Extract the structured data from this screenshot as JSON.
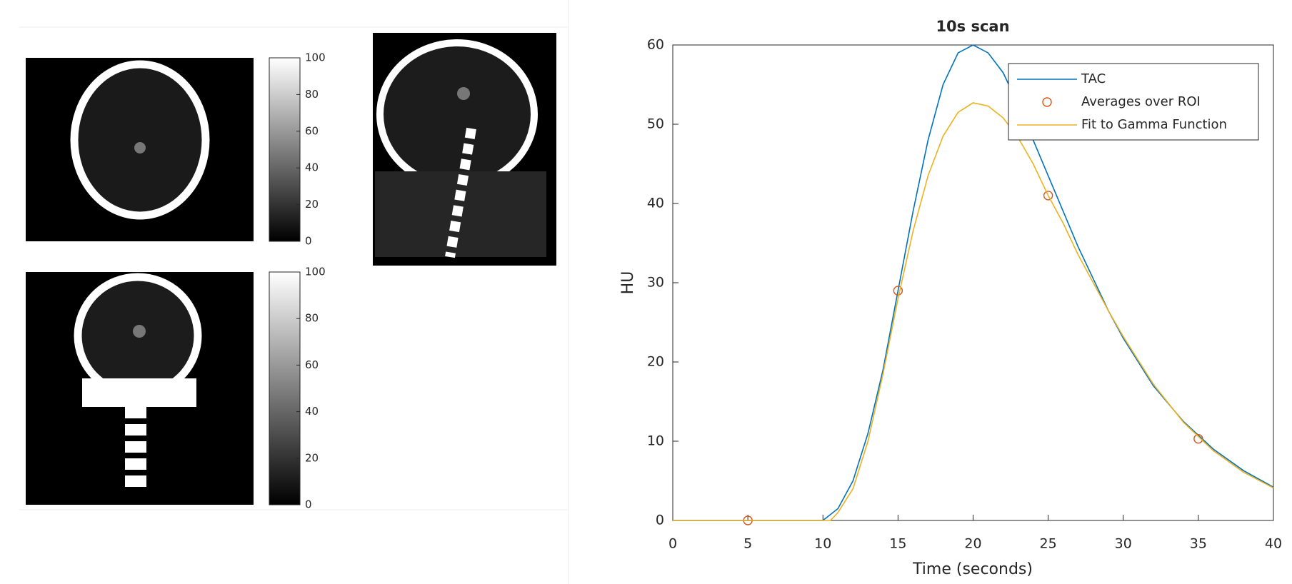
{
  "colorbars": [
    {
      "lim": [
        0,
        100
      ],
      "ticks": [
        0,
        20,
        40,
        60,
        80,
        100
      ]
    },
    {
      "lim": [
        0,
        100
      ],
      "ticks": [
        0,
        20,
        40,
        60,
        80,
        100
      ]
    }
  ],
  "chart_data": {
    "type": "line",
    "title": "10s scan",
    "x_label": "Time (seconds)",
    "y_label": "HU",
    "xlim": [
      0,
      40
    ],
    "xticks": [
      0,
      5,
      10,
      15,
      20,
      25,
      30,
      35,
      40
    ],
    "ylim": [
      0,
      60
    ],
    "yticks": [
      0,
      10,
      20,
      30,
      40,
      50,
      60
    ],
    "legend": "northeast",
    "series": [
      {
        "name": "TAC",
        "color": "#0072bd",
        "style": "line",
        "x": [
          0,
          10,
          11,
          12,
          13,
          14,
          15,
          16,
          17,
          18,
          19,
          20,
          21,
          22,
          23,
          24,
          25,
          26,
          27,
          28,
          29,
          30,
          32,
          34,
          36,
          38,
          40
        ],
        "values": [
          0,
          0,
          1.5,
          5,
          11,
          19,
          29,
          39,
          48,
          55,
          59,
          60,
          59,
          56.5,
          52.5,
          48,
          43.5,
          39,
          34.5,
          30.5,
          26.5,
          23,
          17,
          12.5,
          9,
          6.3,
          4.2
        ]
      },
      {
        "name": "Averages over ROI",
        "color": "#d95319",
        "style": "marker",
        "x": [
          5,
          15,
          25,
          35
        ],
        "values": [
          0,
          29,
          41,
          10.3
        ]
      },
      {
        "name": "Fit to Gamma Function",
        "color": "#edb120",
        "style": "line",
        "x": [
          0,
          10.5,
          11,
          12,
          13,
          14,
          15,
          16,
          17,
          18,
          19,
          20,
          21,
          22,
          23,
          24,
          25,
          26,
          27,
          28,
          29,
          30,
          32,
          34,
          36,
          38,
          40
        ],
        "values": [
          0,
          0,
          1,
          4,
          10,
          18.5,
          28,
          36.5,
          43.5,
          48.5,
          51.5,
          52.7,
          52.3,
          50.8,
          48.3,
          45,
          41,
          37.5,
          33.5,
          30,
          26.5,
          23.2,
          17.2,
          12.4,
          8.8,
          6.1,
          4.1
        ]
      }
    ]
  }
}
